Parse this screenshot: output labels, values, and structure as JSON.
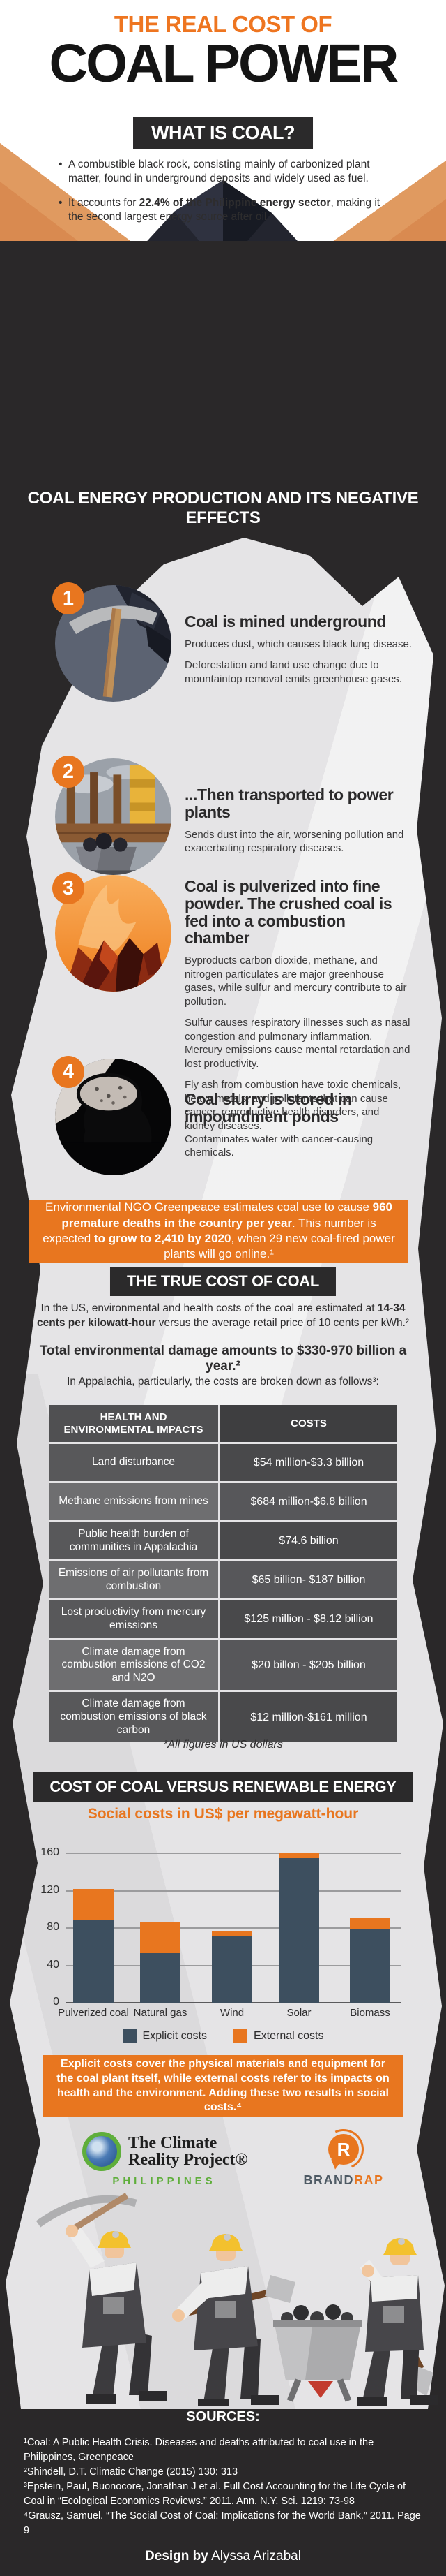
{
  "colors": {
    "orange": "#E8761F",
    "charcoal": "#2A2829",
    "paper": "#E5E4E6",
    "slate_bar": "#3D4F5F",
    "green": "#5FAE3B"
  },
  "header": {
    "kicker": "THE REAL COST OF",
    "title": "COAL POWER",
    "what_box": "WHAT IS COAL?",
    "bullet1": [
      {
        "t": "A combustible black rock, consisting mainly of carbonized plant matter, found in underground deposits and widely used as fuel.",
        "b": false
      }
    ],
    "bullet2": [
      {
        "t": "It accounts for ",
        "b": false
      },
      {
        "t": "22.4% of the Philippine energy sector",
        "b": true
      },
      {
        "t": ", making it the second largest energy source after oil.",
        "b": false
      }
    ]
  },
  "production": {
    "section_title": "COAL ENERGY PRODUCTION AND ITS NEGATIVE EFFECTS",
    "steps": [
      {
        "num": "1",
        "title": "Coal is mined underground",
        "paragraphs": [
          "Produces dust, which causes black lung disease.",
          "Deforestation and land use change due to mountaintop removal emits greenhouse gases."
        ]
      },
      {
        "num": "2",
        "title": "...Then transported to power plants",
        "paragraphs": [
          "Sends dust into the air, worsening pollution and exacerbating respiratory diseases."
        ]
      },
      {
        "num": "3",
        "title": "Coal is pulverized into fine powder. The crushed coal is fed into a combustion chamber",
        "paragraphs": [
          "Byproducts carbon dioxide, methane, and nitrogen particulates are major greenhouse gases, while sulfur and mercury contribute to air pollution.",
          "Sulfur causes respiratory illnesses such as nasal congestion and pulmonary inflammation.\nMercury emissions cause mental retardation and lost productivity.",
          "Fly ash from combustion have toxic chemicals, heavy metals, and pollutants that can cause cancer, reproductive health disorders, and kidney diseases."
        ]
      },
      {
        "num": "4",
        "title": "Coal slurry is stored in impoundment ponds",
        "paragraphs": [
          "Contaminates water with cancer-causing chemicals."
        ]
      }
    ],
    "greenpeace_callout": [
      {
        "t": "Environmental NGO Greenpeace estimates coal use to cause ",
        "b": false
      },
      {
        "t": "960 premature deaths in the country per year",
        "b": true
      },
      {
        "t": ". This number is expected ",
        "b": false
      },
      {
        "t": "to grow to 2,410 by 2020",
        "b": true
      },
      {
        "t": ", when 29 new coal-fired power plants will go online.¹",
        "b": false
      }
    ]
  },
  "true_cost": {
    "title": "THE TRUE COST OF COAL",
    "p1": [
      {
        "t": "In the US, environmental and health costs of the coal are estimated at ",
        "b": false
      },
      {
        "t": "14-34 cents per kilowatt-hour",
        "b": true
      },
      {
        "t": " versus the average retail price of 10 cents per kWh.²",
        "b": false
      }
    ],
    "p2": "Total environmental damage amounts to $330-970 billion a year.²",
    "p3": "In Appalachia, particularly, the costs are broken down as follows³:",
    "table": {
      "headers": [
        "HEALTH AND ENVIRONMENTAL IMPACTS",
        "COSTS"
      ],
      "rows": [
        [
          "Land disturbance",
          "$54 million-$3.3 billion"
        ],
        [
          "Methane emissions from mines",
          "$684 million-$6.8 billion"
        ],
        [
          "Public health burden of communities in Appalachia",
          "$74.6 billion"
        ],
        [
          "Emissions of air pollutants from combustion",
          "$65 billion- $187 billion"
        ],
        [
          "Lost productivity from mercury emissions",
          "$125 million - $8.12 billion"
        ],
        [
          "Climate damage from combustion emissions of CO2 and N2O",
          "$20 billon - $205 billion"
        ],
        [
          "Climate damage from combustion emissions of black carbon",
          "$12 million-$161 million"
        ]
      ]
    },
    "footnote": "*All figures in US dollars"
  },
  "chart_data": {
    "type": "bar",
    "stacked": true,
    "title": "COST OF COAL VERSUS RENEWABLE ENERGY",
    "subtitle": "Social costs in US$ per megawatt-hour",
    "categories": [
      "Pulverized coal",
      "Natural gas",
      "Wind",
      "Solar",
      "Biomass"
    ],
    "series": [
      {
        "name": "Explicit costs",
        "color": "#3D4F5F",
        "values": [
          88,
          53,
          72,
          155,
          79
        ]
      },
      {
        "name": "External costs",
        "color": "#E8761F",
        "values": [
          34,
          34,
          4,
          6,
          12
        ]
      }
    ],
    "ylim": [
      0,
      160
    ],
    "yticks": [
      0,
      40,
      80,
      120,
      160
    ],
    "grid": true,
    "legend_position": "bottom"
  },
  "explain_callout": "Explicit costs cover the physical materials and equipment for the coal plant itself, while external costs refer to its impacts on health and the environment. Adding these two results in social costs.⁴",
  "logos": {
    "climate_reality": {
      "line1": "The Climate",
      "line2": "Reality Project®",
      "region": "PHILIPPINES"
    },
    "brandrap": {
      "letter": "R",
      "brand": "BRAND",
      "rap": "RAP"
    }
  },
  "sources": {
    "heading": "SOURCES:",
    "items": [
      "¹Coal: A Public Health Crisis. Diseases and deaths attributed to coal use in the Philippines, Greenpeace",
      "²Shindell, D.T. Climatic Change (2015) 130: 313",
      "³Epstein, Paul, Buonocore, Jonathan J et al. Full Cost Accounting for the Life Cycle of Coal in “Ecological Economics Reviews.” 2011. Ann. N.Y. Sci. 1219: 73-98",
      "⁴Grausz, Samuel. “The Social Cost of Coal: Implications for the World Bank.” 2011. Page 9"
    ],
    "credit_bold": "Design by",
    "credit_name": " Alyssa Arizabal"
  }
}
